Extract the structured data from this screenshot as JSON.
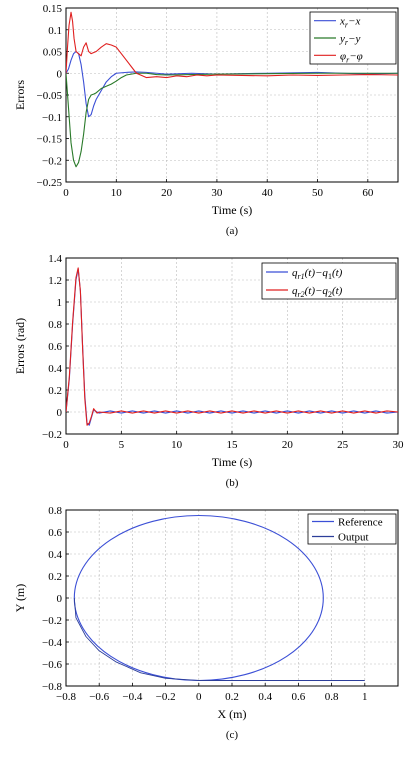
{
  "chart_data": [
    {
      "type": "line",
      "panel_label": "(a)",
      "xlabel": "Time (s)",
      "ylabel": "Errors",
      "xlim": [
        0,
        66
      ],
      "ylim": [
        -0.25,
        0.15
      ],
      "xticks": [
        0,
        10,
        20,
        30,
        40,
        50,
        60
      ],
      "yticks": [
        -0.25,
        -0.2,
        -0.15,
        -0.1,
        -0.05,
        0,
        0.05,
        0.1,
        0.15
      ],
      "ytick_labels": [
        "−0.25",
        "−0.2",
        "−0.15",
        "−0.1",
        "−0.05",
        "0",
        "0.05",
        "0.1",
        "0.15"
      ],
      "grid": true,
      "legend": "top-right",
      "series": [
        {
          "name": "x_r−x",
          "legend_main": "x",
          "legend_sub": "r",
          "legend_rest": "−x",
          "color": "#3b4fd6",
          "x": [
            0,
            0.5,
            1,
            1.5,
            2,
            2.5,
            3,
            3.5,
            4,
            4.5,
            5,
            5.5,
            6,
            7,
            8,
            9,
            10,
            12,
            14,
            16,
            18,
            20,
            25,
            30,
            40,
            50,
            60,
            66
          ],
          "y": [
            0.0,
            0.01,
            0.03,
            0.045,
            0.05,
            0.045,
            0.02,
            -0.02,
            -0.07,
            -0.1,
            -0.095,
            -0.075,
            -0.06,
            -0.04,
            -0.02,
            -0.008,
            0.0,
            0.002,
            0.003,
            0.002,
            0.0,
            -0.002,
            0.0,
            -0.002,
            0.0,
            0.002,
            -0.002,
            0.0
          ]
        },
        {
          "name": "y_r−y",
          "legend_main": "y",
          "legend_sub": "r",
          "legend_rest": "−y",
          "color": "#2a7a2a",
          "x": [
            0,
            0.5,
            1,
            1.5,
            2,
            2.5,
            3,
            3.5,
            4,
            4.5,
            5,
            5.5,
            6,
            7,
            8,
            9,
            10,
            11,
            12,
            14,
            16,
            18,
            20,
            25,
            30,
            40,
            50,
            60,
            66
          ],
          "y": [
            0.0,
            -0.08,
            -0.16,
            -0.2,
            -0.215,
            -0.205,
            -0.18,
            -0.14,
            -0.09,
            -0.06,
            -0.05,
            -0.048,
            -0.045,
            -0.035,
            -0.03,
            -0.025,
            -0.018,
            -0.01,
            -0.004,
            0.0,
            0.0,
            -0.003,
            -0.004,
            -0.003,
            -0.002,
            -0.001,
            0.0,
            0.0,
            0.0
          ]
        },
        {
          "name": "φ_r−φ",
          "legend_main": "φ",
          "legend_sub": "r",
          "legend_rest": "−φ",
          "color": "#e02020",
          "x": [
            0,
            0.3,
            0.6,
            1,
            1.3,
            1.6,
            2,
            2.5,
            3,
            3.5,
            4,
            4.5,
            5,
            6,
            7,
            8,
            9,
            10,
            11,
            12,
            13,
            14,
            15,
            16,
            18,
            20,
            22,
            24,
            26,
            28,
            30,
            35,
            40,
            45,
            50,
            55,
            60,
            66
          ],
          "y": [
            0.0,
            0.06,
            0.11,
            0.14,
            0.12,
            0.08,
            0.05,
            0.045,
            0.04,
            0.06,
            0.07,
            0.05,
            0.045,
            0.05,
            0.06,
            0.068,
            0.065,
            0.06,
            0.045,
            0.03,
            0.015,
            0.0,
            -0.005,
            -0.01,
            -0.008,
            -0.01,
            -0.006,
            -0.008,
            -0.004,
            -0.006,
            -0.004,
            -0.005,
            -0.006,
            -0.004,
            -0.005,
            -0.004,
            -0.003,
            -0.004
          ]
        }
      ]
    },
    {
      "type": "line",
      "panel_label": "(b)",
      "xlabel": "Time (s)",
      "ylabel": "Errors (rad)",
      "xlim": [
        0,
        30
      ],
      "ylim": [
        -0.2,
        1.4
      ],
      "xticks": [
        0,
        5,
        10,
        15,
        20,
        25,
        30
      ],
      "yticks": [
        -0.2,
        0,
        0.2,
        0.4,
        0.6,
        0.8,
        1,
        1.2,
        1.4
      ],
      "ytick_labels": [
        "−0.2",
        "0",
        "0.2",
        "0.4",
        "0.6",
        "0.8",
        "1",
        "1.2",
        "1.4"
      ],
      "grid": true,
      "legend": "top-right",
      "series": [
        {
          "name": "q_r1(t)−q_1(t)",
          "legend_main": "q",
          "legend_sub": "r1",
          "legend_rest": "(t)−q",
          "legend_sub2": "1",
          "legend_tail": "(t)",
          "color": "#3b4fd6",
          "x": [
            0,
            0.3,
            0.6,
            0.9,
            1.1,
            1.3,
            1.5,
            1.7,
            1.9,
            2.1,
            2.3,
            2.5,
            2.8,
            3,
            4,
            5,
            6,
            7,
            8,
            9,
            10,
            11,
            12,
            13,
            14,
            15,
            16,
            17,
            18,
            19,
            20,
            21,
            22,
            23,
            24,
            25,
            26,
            27,
            28,
            29,
            30
          ],
          "y": [
            0.0,
            0.3,
            0.8,
            1.2,
            1.3,
            1.1,
            0.6,
            0.15,
            -0.1,
            -0.12,
            -0.05,
            0.02,
            0.0,
            -0.01,
            0.01,
            -0.01,
            0.01,
            -0.01,
            0.01,
            -0.01,
            0.01,
            -0.01,
            0.01,
            -0.01,
            0.01,
            -0.01,
            0.01,
            -0.01,
            0.01,
            -0.01,
            0.01,
            -0.01,
            0.01,
            -0.01,
            0.01,
            -0.01,
            0.01,
            -0.01,
            0.01,
            -0.01,
            0.0
          ]
        },
        {
          "name": "q_r2(t)−q_2(t)",
          "legend_main": "q",
          "legend_sub": "r2",
          "legend_rest": "(t)−q",
          "legend_sub2": "2",
          "legend_tail": "(t)",
          "color": "#e02020",
          "x": [
            0,
            0.3,
            0.6,
            0.9,
            1.1,
            1.3,
            1.5,
            1.7,
            1.9,
            2.1,
            2.3,
            2.5,
            2.8,
            3,
            4,
            5,
            6,
            7,
            8,
            9,
            10,
            11,
            12,
            13,
            14,
            15,
            16,
            17,
            18,
            19,
            20,
            21,
            22,
            23,
            24,
            25,
            26,
            27,
            28,
            29,
            30
          ],
          "y": [
            0.0,
            0.32,
            0.82,
            1.22,
            1.31,
            1.1,
            0.58,
            0.12,
            -0.12,
            -0.1,
            -0.04,
            0.03,
            -0.01,
            0.0,
            -0.01,
            0.01,
            -0.01,
            0.01,
            -0.01,
            0.01,
            -0.01,
            0.01,
            -0.01,
            0.01,
            -0.01,
            0.01,
            -0.01,
            0.01,
            -0.01,
            0.01,
            -0.01,
            0.01,
            -0.01,
            0.01,
            -0.01,
            0.01,
            -0.01,
            0.01,
            -0.01,
            0.01,
            0.0
          ]
        }
      ]
    },
    {
      "type": "line",
      "panel_label": "(c)",
      "xlabel": "X (m)",
      "ylabel": "Y (m)",
      "xlim": [
        -0.8,
        1.2
      ],
      "ylim": [
        -0.8,
        0.8
      ],
      "xticks": [
        -0.8,
        -0.6,
        -0.4,
        -0.2,
        0,
        0.2,
        0.4,
        0.6,
        0.8,
        1
      ],
      "xtick_labels": [
        "−0.8",
        "−0.6",
        "−0.4",
        "−0.2",
        "0",
        "0.2",
        "0.4",
        "0.6",
        "0.8",
        "1"
      ],
      "yticks": [
        -0.8,
        -0.6,
        -0.4,
        -0.2,
        0,
        0.2,
        0.4,
        0.6,
        0.8
      ],
      "ytick_labels": [
        "−0.8",
        "−0.6",
        "−0.4",
        "−0.2",
        "0",
        "0.2",
        "0.4",
        "0.6",
        "0.8"
      ],
      "grid": true,
      "legend": "top-right",
      "series": [
        {
          "name": "Reference",
          "color": "#3b4fd6",
          "shape": "circle",
          "center": [
            0,
            0
          ],
          "radius": 0.75
        },
        {
          "name": "Output",
          "color": "#2c3e9a",
          "x": [
            1.0,
            0.8,
            0.6,
            0.4,
            0.2,
            0.0,
            -0.2,
            -0.35,
            -0.5,
            -0.6,
            -0.68,
            -0.74,
            -0.75
          ],
          "y": [
            -0.75,
            -0.75,
            -0.75,
            -0.75,
            -0.75,
            -0.75,
            -0.73,
            -0.68,
            -0.58,
            -0.48,
            -0.35,
            -0.18,
            0.0
          ]
        }
      ]
    }
  ]
}
